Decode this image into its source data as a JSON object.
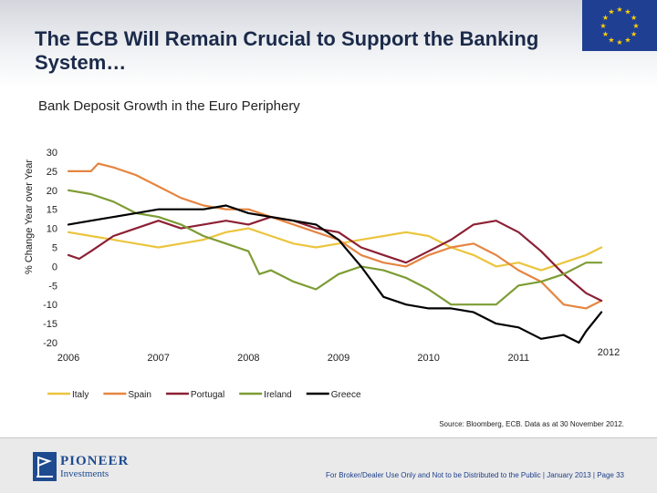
{
  "header": {
    "title": "The ECB Will Remain Crucial to Support the Banking System…"
  },
  "colors": {
    "italy": "#ebc53d",
    "spain": "#e58541",
    "portugal": "#8c2034",
    "ireland": "#7d9c34",
    "greece": "#000000",
    "eu_blue": "#1f3f93",
    "eu_star": "#ffd200"
  },
  "footer": {
    "source": "Source: Bloomberg, ECB. Data as at 30 November 2012.",
    "logo_name": "PIONEER",
    "logo_sub": "Investments",
    "disclaimer": "For Broker/Dealer Use Only and Not to be Distributed to the Public | January 2013 | Page 33"
  },
  "chart_data": {
    "type": "line",
    "title": "Bank Deposit Growth in the Euro Periphery",
    "ylabel": "% Change Year over Year",
    "xlabel": "",
    "ylim": [
      -20,
      30
    ],
    "yticks": [
      30,
      25,
      20,
      15,
      10,
      5,
      0,
      -5,
      -10,
      -15,
      -20
    ],
    "ytick_labels": [
      "30",
      "25",
      "20",
      "15",
      "10",
      "5",
      "0",
      "-5",
      "-10",
      "-15",
      "-20"
    ],
    "xlim": [
      2006.0,
      2012.0
    ],
    "xticks": [
      2006,
      2007,
      2008,
      2009,
      2010,
      2011,
      2012
    ],
    "legend_position": "bottom",
    "series": [
      {
        "name": "Italy",
        "color_key": "italy",
        "x": [
          2006.0,
          2006.25,
          2006.5,
          2006.75,
          2007.0,
          2007.25,
          2007.5,
          2007.75,
          2008.0,
          2008.25,
          2008.5,
          2008.75,
          2009.0,
          2009.25,
          2009.5,
          2009.75,
          2010.0,
          2010.25,
          2010.5,
          2010.75,
          2011.0,
          2011.25,
          2011.5,
          2011.75,
          2011.92
        ],
        "y": [
          9,
          8,
          7,
          6,
          5,
          6,
          7,
          9,
          10,
          8,
          6,
          5,
          6,
          7,
          8,
          9,
          8,
          5,
          3,
          0,
          1,
          -1,
          1,
          3,
          5
        ]
      },
      {
        "name": "Spain",
        "color_key": "spain",
        "x": [
          2006.0,
          2006.25,
          2006.33,
          2006.5,
          2006.75,
          2007.0,
          2007.25,
          2007.5,
          2007.75,
          2008.0,
          2008.25,
          2008.5,
          2008.75,
          2009.0,
          2009.25,
          2009.5,
          2009.75,
          2010.0,
          2010.25,
          2010.5,
          2010.75,
          2011.0,
          2011.25,
          2011.5,
          2011.75,
          2011.92
        ],
        "y": [
          25,
          25,
          27,
          26,
          24,
          21,
          18,
          16,
          15,
          15,
          13,
          11,
          9,
          7,
          3,
          1,
          0,
          3,
          5,
          6,
          3,
          -1,
          -4,
          -10,
          -11,
          -9
        ]
      },
      {
        "name": "Portugal",
        "color_key": "portugal",
        "x": [
          2006.0,
          2006.12,
          2006.25,
          2006.5,
          2006.75,
          2007.0,
          2007.25,
          2007.5,
          2007.75,
          2008.0,
          2008.25,
          2008.5,
          2008.75,
          2009.0,
          2009.25,
          2009.5,
          2009.75,
          2010.0,
          2010.25,
          2010.5,
          2010.75,
          2011.0,
          2011.25,
          2011.5,
          2011.75,
          2011.92
        ],
        "y": [
          3,
          2,
          4,
          8,
          10,
          12,
          10,
          11,
          12,
          11,
          13,
          12,
          10,
          9,
          5,
          3,
          1,
          4,
          7,
          11,
          12,
          9,
          4,
          -2,
          -7,
          -9
        ]
      },
      {
        "name": "Ireland",
        "color_key": "ireland",
        "x": [
          2006.0,
          2006.25,
          2006.5,
          2006.75,
          2007.0,
          2007.25,
          2007.5,
          2007.75,
          2008.0,
          2008.12,
          2008.25,
          2008.5,
          2008.75,
          2009.0,
          2009.25,
          2009.5,
          2009.75,
          2010.0,
          2010.25,
          2010.5,
          2010.75,
          2011.0,
          2011.25,
          2011.5,
          2011.75,
          2011.92
        ],
        "y": [
          20,
          19,
          17,
          14,
          13,
          11,
          8,
          6,
          4,
          -2,
          -1,
          -4,
          -6,
          -2,
          0,
          -1,
          -3,
          -6,
          -10,
          -10,
          -10,
          -5,
          -4,
          -2,
          1,
          1
        ]
      },
      {
        "name": "Greece",
        "color_key": "greece",
        "x": [
          2006.0,
          2006.25,
          2006.5,
          2006.75,
          2007.0,
          2007.25,
          2007.5,
          2007.75,
          2008.0,
          2008.25,
          2008.5,
          2008.75,
          2009.0,
          2009.25,
          2009.5,
          2009.75,
          2010.0,
          2010.25,
          2010.5,
          2010.75,
          2011.0,
          2011.25,
          2011.5,
          2011.67,
          2011.75,
          2011.92
        ],
        "y": [
          11,
          12,
          13,
          14,
          15,
          15,
          15,
          16,
          14,
          13,
          12,
          11,
          7,
          0,
          -8,
          -10,
          -11,
          -11,
          -12,
          -15,
          -16,
          -19,
          -18,
          -20,
          -17,
          -12
        ]
      }
    ]
  }
}
